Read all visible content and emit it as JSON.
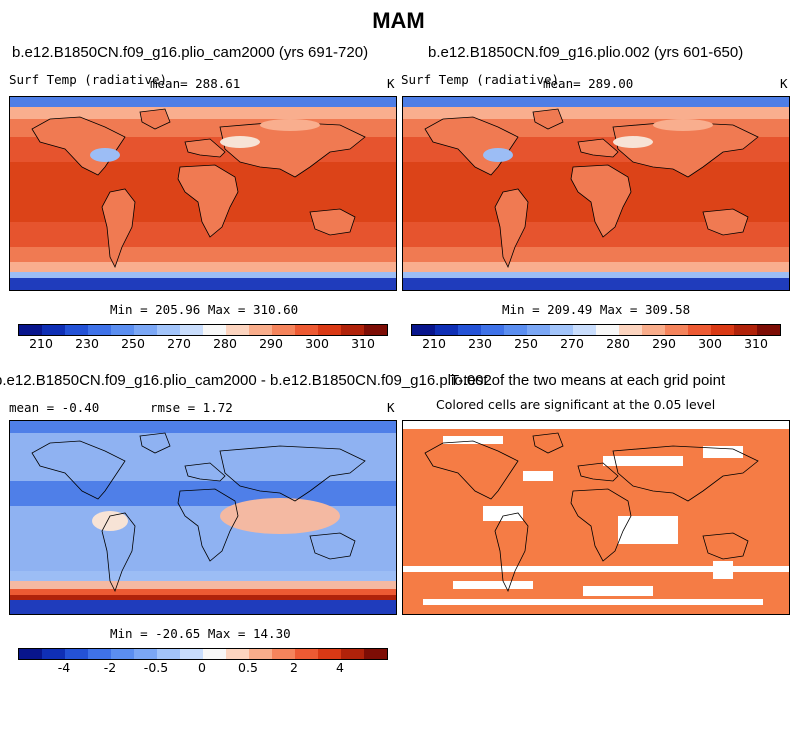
{
  "title": "MAM",
  "panels": {
    "top_left": {
      "case_title": "b.e12.B1850CN.f09_g16.plio_cam2000 (yrs 691-720)",
      "variable": "Surf Temp (radiative)",
      "mean_label": "mean= 288.61",
      "units": "K",
      "minmax": "Min = 205.96 Max = 310.60"
    },
    "top_right": {
      "case_title": "b.e12.B1850CN.f09_g16.plio.002 (yrs 601-650)",
      "variable": "Surf Temp (radiative)",
      "mean_label": "mean= 289.00",
      "units": "K",
      "minmax": "Min = 209.49 Max = 309.58"
    },
    "bottom_left": {
      "case_title": "b.e12.B1850CN.f09_g16.plio_cam2000 - b.e12.B1850CN.f09_g16.plio.002",
      "mean_label": "mean =   -0.40",
      "rmse_label": "rmse =    1.72",
      "units": "K",
      "minmax": "Min = -20.65 Max =  14.30"
    },
    "bottom_right": {
      "case_title": "T-test of the two means at each grid point",
      "subtitle": "Colored cells are significant at the 0.05 level"
    }
  },
  "colorbars": {
    "abs_temp": {
      "ticks": [
        "210",
        "230",
        "250",
        "270",
        "280",
        "290",
        "300",
        "310"
      ],
      "colors": [
        "#08158c",
        "#0f2fb5",
        "#2452d6",
        "#3f72e8",
        "#5b8ef0",
        "#7ba7f5",
        "#a2c4fa",
        "#c9ddfc",
        "#f7f7f7",
        "#fcd4bf",
        "#f9ad8b",
        "#f5845c",
        "#ed5a33",
        "#d93915",
        "#b0220a",
        "#7d0d05"
      ]
    },
    "diff": {
      "ticks": [
        "-4",
        "-2",
        "-0.5",
        "0",
        "0.5",
        "2",
        "4"
      ],
      "colors": [
        "#08158c",
        "#0f2fb5",
        "#2452d6",
        "#3f72e8",
        "#5b8ef0",
        "#7ba7f5",
        "#a2c4fa",
        "#c9ddfc",
        "#f7f7f7",
        "#fcd4bf",
        "#f9ad8b",
        "#f5845c",
        "#ed5a33",
        "#d93915",
        "#b0220a",
        "#7d0d05"
      ]
    }
  },
  "map_colors": {
    "ocean_warm": "#e6542e",
    "tropics": "#dc4318",
    "mid_warm": "#f07a52",
    "cool": "#f9ae8e",
    "pale": "#f7e3d6",
    "cold1": "#9cbdf5",
    "cold2": "#4e7ee6",
    "cold3": "#1f3cbc",
    "diff_base": "#8fb2f2",
    "diff_neg": "#4f7fe8",
    "diff_pos": "#f4b9a2",
    "ttest": "#f57c45"
  },
  "chart_data": [
    {
      "type": "heatmap",
      "title": "b.e12.B1850CN.f09_g16.plio_cam2000 (yrs 691-720)",
      "variable": "Surf Temp (radiative)",
      "units": "K",
      "mean": 288.61,
      "min": 205.96,
      "max": 310.6,
      "colorbar_ticks": [
        210,
        230,
        250,
        270,
        280,
        290,
        300,
        310
      ]
    },
    {
      "type": "heatmap",
      "title": "b.e12.B1850CN.f09_g16.plio.002 (yrs 601-650)",
      "variable": "Surf Temp (radiative)",
      "units": "K",
      "mean": 289.0,
      "min": 209.49,
      "max": 309.58,
      "colorbar_ticks": [
        210,
        230,
        250,
        270,
        280,
        290,
        300,
        310
      ]
    },
    {
      "type": "heatmap",
      "title": "b.e12.B1850CN.f09_g16.plio_cam2000 - b.e12.B1850CN.f09_g16.plio.002",
      "units": "K",
      "mean": -0.4,
      "rmse": 1.72,
      "min": -20.65,
      "max": 14.3,
      "colorbar_ticks": [
        -4,
        -2,
        -0.5,
        0,
        0.5,
        2,
        4
      ]
    },
    {
      "type": "heatmap",
      "title": "T-test of the two means at each grid point",
      "subtitle": "Colored cells are significant at the 0.05 level"
    }
  ]
}
